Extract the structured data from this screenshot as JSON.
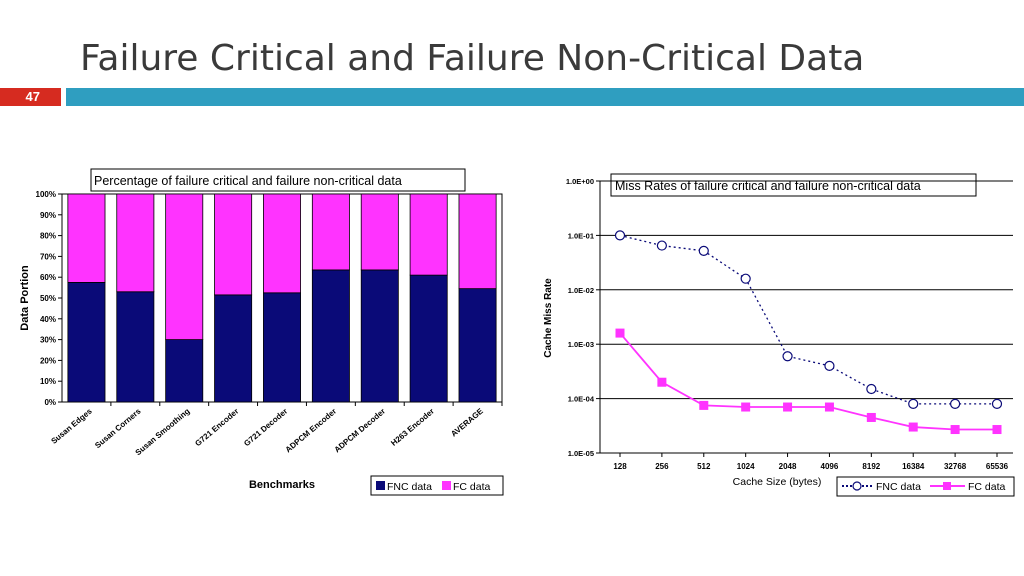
{
  "slide": {
    "title": "Failure Critical and Failure Non-Critical Data",
    "number": "47"
  },
  "colors": {
    "title_text": "#3a3a3a",
    "number_bg": "#d62b20",
    "accent_bar": "#2f9ec0",
    "fnc": "#0a0a78",
    "fc": "#ff33ff"
  },
  "chart_data": [
    {
      "type": "bar",
      "stacked": true,
      "title": "Percentage of failure critical and failure non-critical data",
      "xlabel": "Benchmarks",
      "ylabel": "Data Portion",
      "ylim": [
        0,
        100
      ],
      "yticks": [
        "0%",
        "10%",
        "20%",
        "30%",
        "40%",
        "50%",
        "60%",
        "70%",
        "80%",
        "90%",
        "100%"
      ],
      "categories": [
        "Susan Edges",
        "Susan Corners",
        "Susan Smoothing",
        "G721 Encoder",
        "G721 Decoder",
        "ADPCM Encoder",
        "ADPCM Decoder",
        "H263 Encoder",
        "AVERAGE"
      ],
      "series": [
        {
          "name": "FNC data",
          "color": "#0a0a78",
          "values": [
            57.5,
            53,
            30,
            51.5,
            52.5,
            63.5,
            63.5,
            61,
            54.5
          ]
        },
        {
          "name": "FC data",
          "color": "#ff33ff",
          "values": [
            42.5,
            47,
            70,
            48.5,
            47.5,
            36.5,
            36.5,
            39,
            45.5
          ]
        }
      ],
      "legend": "bottom-right",
      "grid": false
    },
    {
      "type": "line",
      "title": "Miss Rates of failure critical and failure non-critical data",
      "xlabel": "Cache Size (bytes)",
      "ylabel": "Cache Miss Rate",
      "yscale": "log",
      "ylim": [
        1e-05,
        1
      ],
      "yticks": [
        "1.0E-05",
        "1.0E-04",
        "1.0E-03",
        "1.0E-02",
        "1.0E-01",
        "1.0E+00"
      ],
      "x": [
        "128",
        "256",
        "512",
        "1024",
        "2048",
        "4096",
        "8192",
        "16384",
        "32768",
        "65536"
      ],
      "series": [
        {
          "name": "FNC data",
          "color": "#0a0a78",
          "marker": "open-circle",
          "line": "dotted",
          "values": [
            0.1,
            0.065,
            0.052,
            0.016,
            0.0006,
            0.0004,
            0.00015,
            8e-05,
            8e-05,
            8e-05
          ]
        },
        {
          "name": "FC data",
          "color": "#ff33ff",
          "marker": "filled-square",
          "line": "solid",
          "values": [
            0.0016,
            0.0002,
            7.5e-05,
            7e-05,
            7e-05,
            7e-05,
            4.5e-05,
            3e-05,
            2.7e-05,
            2.7e-05
          ]
        }
      ],
      "legend": "bottom-right",
      "grid": true
    }
  ]
}
